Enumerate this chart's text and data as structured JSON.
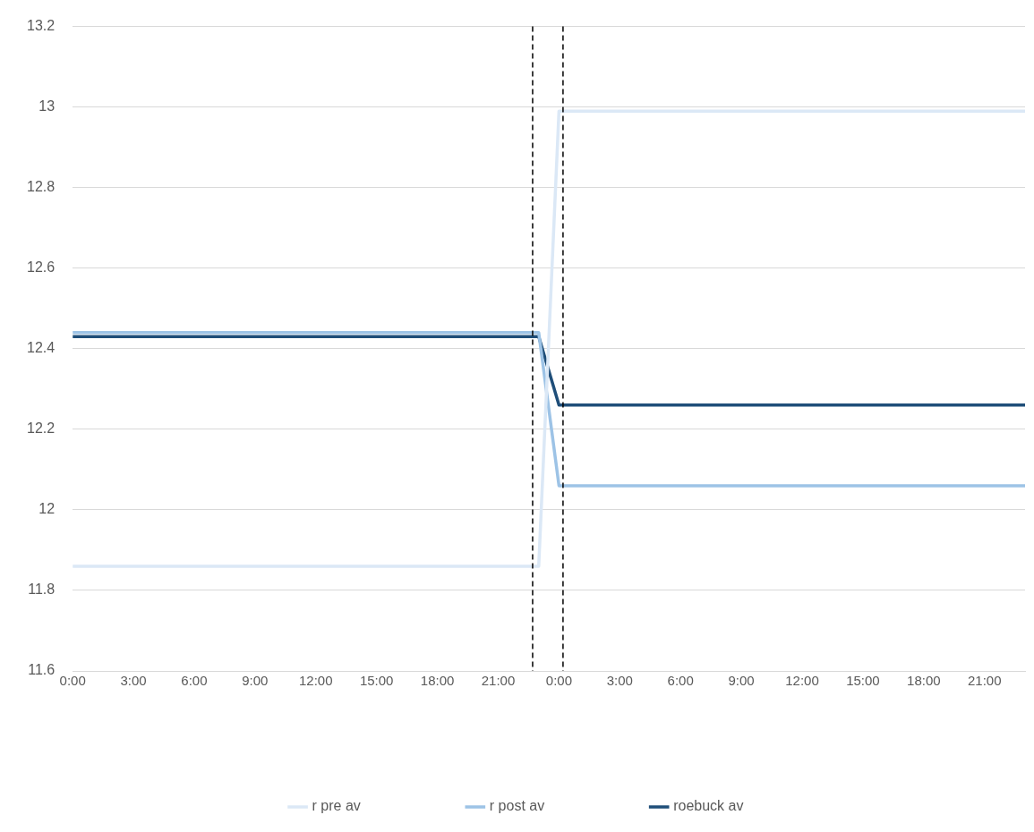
{
  "chart_data": {
    "type": "line",
    "x": [
      "--01-01T00:00",
      "--01-01T23:00",
      "--01-02T00:00",
      "--01-02T23:00"
    ],
    "series": [
      {
        "name": "r pre av",
        "color": "#dbe8f6",
        "values": [
          11.86,
          11.86,
          12.99,
          12.99
        ]
      },
      {
        "name": "r post av",
        "color": "#9dc3e6",
        "values": [
          12.44,
          12.44,
          12.06,
          12.06
        ]
      },
      {
        "name": "roebuck av",
        "color": "#1f4e79",
        "values": [
          12.43,
          12.43,
          12.26,
          12.26
        ]
      }
    ],
    "xlim": [
      "--01-01T00:00",
      "--01-02T23:00"
    ],
    "xticks": [
      {
        "value": "--01-01T00:00",
        "label": "0:00"
      },
      {
        "value": "--01-01T03:00",
        "label": "3:00"
      },
      {
        "value": "--01-01T06:00",
        "label": "6:00"
      },
      {
        "value": "--01-01T09:00",
        "label": "9:00"
      },
      {
        "value": "--01-01T12:00",
        "label": "12:00"
      },
      {
        "value": "--01-01T15:00",
        "label": "15:00"
      },
      {
        "value": "--01-01T18:00",
        "label": "18:00"
      },
      {
        "value": "--01-01T21:00",
        "label": "21:00"
      },
      {
        "value": "--01-02T00:00",
        "label": "0:00"
      },
      {
        "value": "--01-02T03:00",
        "label": "3:00"
      },
      {
        "value": "--01-02T06:00",
        "label": "6:00"
      },
      {
        "value": "--01-02T09:00",
        "label": "9:00"
      },
      {
        "value": "--01-02T12:00",
        "label": "12:00"
      },
      {
        "value": "--01-02T15:00",
        "label": "15:00"
      },
      {
        "value": "--01-02T18:00",
        "label": "18:00"
      },
      {
        "value": "--01-02T21:00",
        "label": "21:00"
      }
    ],
    "ylim": [
      11.6,
      13.2
    ],
    "yticks": [
      11.6,
      11.8,
      12,
      12.2,
      12.4,
      12.6,
      12.8,
      13,
      13.2
    ],
    "ref_lines": [
      {
        "axis": "x",
        "value": "--01-01T22:42",
        "color": "#000000",
        "line_style": "dashed"
      },
      {
        "axis": "x",
        "value": "--01-02T00:12",
        "color": "#000000",
        "line_style": "dashed"
      }
    ],
    "grid": "y",
    "legend": "bottom",
    "marker": "none",
    "line_style": "solid"
  }
}
